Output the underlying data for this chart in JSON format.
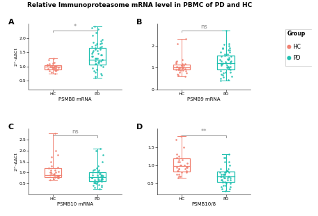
{
  "title": "Relative Immunoproteasome mRNA level in PBMC of PD and HC",
  "panels": [
    "A",
    "B",
    "C",
    "D"
  ],
  "xlabels": [
    "PSMB8 mRNA",
    "PSMB9 mRNA",
    "PSMB10 mRNA",
    "PSMB10/8"
  ],
  "ylabel": "2^-ΔΔCt",
  "significance": [
    "*",
    "ns",
    "ns",
    "**"
  ],
  "hc_color": "#F08070",
  "pd_color": "#20C0B0",
  "panels_data": {
    "A": {
      "hc_vals": [
        1.0,
        1.05,
        0.95,
        1.02,
        0.98,
        1.0,
        1.1,
        0.9,
        0.85,
        0.92,
        1.02,
        0.97,
        1.08,
        1.12,
        0.88,
        1.0,
        0.95,
        1.0,
        0.9,
        0.85,
        1.3,
        1.25,
        0.8,
        0.75,
        1.05,
        0.98,
        1.0,
        0.93,
        0.88,
        1.15
      ],
      "pd_vals": [
        1.2,
        1.3,
        1.25,
        1.1,
        1.5,
        1.6,
        1.35,
        1.4,
        1.45,
        1.2,
        1.15,
        1.05,
        0.85,
        0.7,
        0.6,
        1.8,
        1.75,
        1.7,
        1.65,
        1.55,
        2.2,
        2.1,
        1.9,
        1.85,
        1.3,
        1.25,
        1.0,
        0.9,
        0.75,
        2.4,
        2.3,
        1.95,
        1.55,
        1.45,
        1.35,
        1.1,
        0.95,
        0.8,
        0.65,
        1.6,
        1.7,
        1.8,
        1.2,
        1.15,
        1.3,
        2.35,
        1.82,
        1.68,
        1.42
      ],
      "ylim": [
        0.2,
        2.5
      ],
      "yticks": [
        0.5,
        1.0,
        1.5,
        2.0
      ],
      "hc_q1": 0.91,
      "hc_median": 1.0,
      "hc_q3": 1.04,
      "hc_whislo": 0.75,
      "hc_whishi": 1.3,
      "pd_q1": 1.08,
      "pd_median": 1.25,
      "pd_q3": 1.65,
      "pd_whislo": 0.6,
      "pd_whishi": 2.4
    },
    "B": {
      "hc_vals": [
        1.0,
        1.1,
        0.9,
        1.05,
        0.95,
        1.02,
        0.88,
        1.15,
        1.2,
        0.8,
        0.75,
        1.3,
        2.3,
        0.85,
        0.92,
        1.0,
        1.05,
        0.98,
        1.1,
        1.0,
        0.95,
        1.02,
        0.88,
        1.15,
        1.0,
        0.7,
        2.1,
        1.25,
        1.1,
        0.9,
        0.65,
        0.6,
        1.35
      ],
      "pd_vals": [
        1.1,
        1.2,
        1.15,
        1.0,
        1.3,
        1.25,
        1.05,
        0.95,
        0.85,
        1.5,
        1.4,
        1.35,
        1.45,
        1.2,
        1.15,
        2.0,
        1.9,
        1.8,
        1.7,
        1.6,
        1.55,
        2.7,
        0.8,
        0.7,
        0.6,
        0.5,
        1.1,
        1.0,
        1.3,
        1.2,
        1.15,
        1.25,
        1.35,
        1.4,
        1.0,
        0.9,
        0.8,
        0.75,
        0.65,
        0.55,
        1.05,
        1.5,
        1.6,
        1.7,
        1.8,
        2.1,
        2.05,
        1.9,
        1.85,
        0.45,
        0.4
      ],
      "ylim": [
        0.0,
        3.0
      ],
      "yticks": [
        0,
        1.0,
        2.0
      ],
      "hc_q1": 0.9,
      "hc_median": 1.0,
      "hc_q3": 1.12,
      "hc_whislo": 0.6,
      "hc_whishi": 2.3,
      "pd_q1": 0.92,
      "pd_median": 1.2,
      "pd_q3": 1.55,
      "pd_whislo": 0.4,
      "pd_whishi": 2.7
    },
    "C": {
      "hc_vals": [
        0.75,
        0.8,
        0.85,
        0.9,
        0.95,
        1.0,
        1.05,
        1.1,
        1.2,
        1.3,
        1.5,
        1.7,
        2.0,
        1.8,
        0.7,
        0.65,
        2.8,
        0.88,
        0.92,
        0.78,
        0.82,
        1.0,
        0.95,
        1.1,
        0.85,
        0.75,
        1.25,
        0.8,
        0.9,
        1.0
      ],
      "pd_vals": [
        0.8,
        0.85,
        0.75,
        0.9,
        0.95,
        1.0,
        0.7,
        0.65,
        0.6,
        0.55,
        0.5,
        0.45,
        0.4,
        1.1,
        1.2,
        1.3,
        1.5,
        2.0,
        2.1,
        1.8,
        0.8,
        0.75,
        0.85,
        0.9,
        0.95,
        1.0,
        0.7,
        0.65,
        0.6,
        0.55,
        0.8,
        0.85,
        0.9,
        0.75,
        0.7,
        0.65,
        0.6,
        0.55,
        1.05,
        1.1,
        1.15,
        0.4,
        0.35,
        0.3,
        0.25
      ],
      "ylim": [
        0.0,
        3.0
      ],
      "yticks": [
        0.5,
        1.0,
        1.5,
        2.0,
        2.5
      ],
      "hc_q1": 0.8,
      "hc_median": 0.9,
      "hc_q3": 1.2,
      "hc_whislo": 0.65,
      "hc_whishi": 2.8,
      "pd_q1": 0.6,
      "pd_median": 0.8,
      "pd_q3": 1.0,
      "pd_whislo": 0.25,
      "pd_whishi": 2.1
    },
    "D": {
      "hc_vals": [
        0.9,
        0.95,
        1.0,
        1.05,
        1.1,
        0.85,
        0.8,
        1.2,
        1.3,
        1.15,
        0.75,
        0.7,
        1.5,
        1.8,
        1.7,
        0.65,
        1.0,
        0.95,
        0.9,
        0.85,
        1.25,
        1.15,
        1.0,
        0.9,
        0.8,
        0.75,
        1.1,
        0.95,
        0.85,
        0.7
      ],
      "pd_vals": [
        0.7,
        0.75,
        0.8,
        0.65,
        0.6,
        0.55,
        0.85,
        0.9,
        0.75,
        0.7,
        0.65,
        0.6,
        1.0,
        1.1,
        1.2,
        0.5,
        0.45,
        0.4,
        0.35,
        0.3,
        0.7,
        0.75,
        0.8,
        0.85,
        0.9,
        0.65,
        0.6,
        0.55,
        1.3,
        1.2,
        1.1,
        0.7,
        0.65,
        0.8,
        0.75,
        0.55,
        0.5,
        0.45,
        0.4,
        0.35,
        0.7,
        0.75,
        0.8,
        0.85,
        0.6
      ],
      "ylim": [
        0.2,
        2.0
      ],
      "yticks": [
        0.5,
        1.0,
        1.5
      ],
      "hc_q1": 0.83,
      "hc_median": 0.97,
      "hc_q3": 1.18,
      "hc_whislo": 0.65,
      "hc_whishi": 1.8,
      "pd_q1": 0.55,
      "pd_median": 0.7,
      "pd_q3": 0.82,
      "pd_whislo": 0.3,
      "pd_whishi": 1.3
    }
  },
  "legend_group": "Group",
  "legend_hc": "HC",
  "legend_pd": "PD"
}
